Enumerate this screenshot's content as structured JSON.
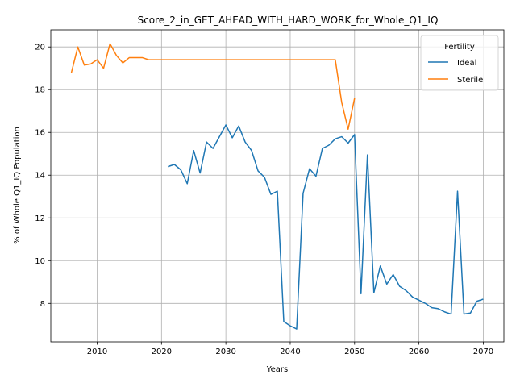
{
  "chart_data": {
    "type": "line",
    "title": "Score_2_in_GET_AHEAD_WITH_HARD_WORK_for_Whole_Q1_IQ",
    "xlabel": "Years",
    "ylabel": "% of Whole Q1_IQ Population",
    "xlim": [
      2002.8,
      2073.2
    ],
    "ylim": [
      6.2,
      20.8
    ],
    "xticks": [
      2010,
      2020,
      2030,
      2040,
      2050,
      2060,
      2070
    ],
    "yticks": [
      8,
      10,
      12,
      14,
      16,
      18,
      20
    ],
    "grid": true,
    "legend": {
      "title": "Fertility",
      "placement": "top-right"
    },
    "series": [
      {
        "name": "Ideal",
        "color": "#1f77b4",
        "x": [
          2021,
          2022,
          2023,
          2024,
          2025,
          2026,
          2027,
          2028,
          2029,
          2030,
          2031,
          2032,
          2033,
          2034,
          2035,
          2036,
          2037,
          2038,
          2039,
          2040,
          2041,
          2042,
          2043,
          2044,
          2045,
          2046,
          2047,
          2048,
          2049,
          2050,
          2051,
          2052,
          2053,
          2054,
          2055,
          2056,
          2057,
          2058,
          2059,
          2060,
          2061,
          2062,
          2063,
          2064,
          2065,
          2066,
          2067,
          2068,
          2069,
          2070
        ],
        "y": [
          14.4,
          14.5,
          14.25,
          13.6,
          15.15,
          14.1,
          15.55,
          15.25,
          15.8,
          16.35,
          15.75,
          16.3,
          15.55,
          15.15,
          14.2,
          13.9,
          13.1,
          13.25,
          7.15,
          6.95,
          6.8,
          13.15,
          14.3,
          13.95,
          15.25,
          15.4,
          15.7,
          15.8,
          15.5,
          15.9,
          8.45,
          14.95,
          8.5,
          9.75,
          8.9,
          9.35,
          8.8,
          8.6,
          8.3,
          8.15,
          8.0,
          7.8,
          7.75,
          7.6,
          7.5,
          13.25,
          7.5,
          7.55,
          8.1,
          8.2
        ]
      },
      {
        "name": "Sterile",
        "color": "#ff7f0e",
        "x": [
          2006,
          2007,
          2008,
          2009,
          2010,
          2011,
          2012,
          2013,
          2014,
          2015,
          2016,
          2017,
          2018,
          2019,
          2020,
          2021,
          2022,
          2023,
          2024,
          2025,
          2026,
          2027,
          2028,
          2029,
          2030,
          2031,
          2032,
          2033,
          2034,
          2035,
          2036,
          2037,
          2038,
          2039,
          2040,
          2041,
          2042,
          2043,
          2044,
          2045,
          2046,
          2047,
          2048,
          2049,
          2050
        ],
        "y": [
          18.8,
          20.0,
          19.15,
          19.2,
          19.4,
          19.0,
          20.15,
          19.6,
          19.25,
          19.5,
          19.5,
          19.5,
          19.4,
          19.4,
          19.4,
          19.4,
          19.4,
          19.4,
          19.4,
          19.4,
          19.4,
          19.4,
          19.4,
          19.4,
          19.4,
          19.4,
          19.4,
          19.4,
          19.4,
          19.4,
          19.4,
          19.4,
          19.4,
          19.4,
          19.4,
          19.4,
          19.4,
          19.4,
          19.4,
          19.4,
          19.4,
          19.4,
          17.4,
          16.15,
          17.6
        ]
      }
    ]
  }
}
